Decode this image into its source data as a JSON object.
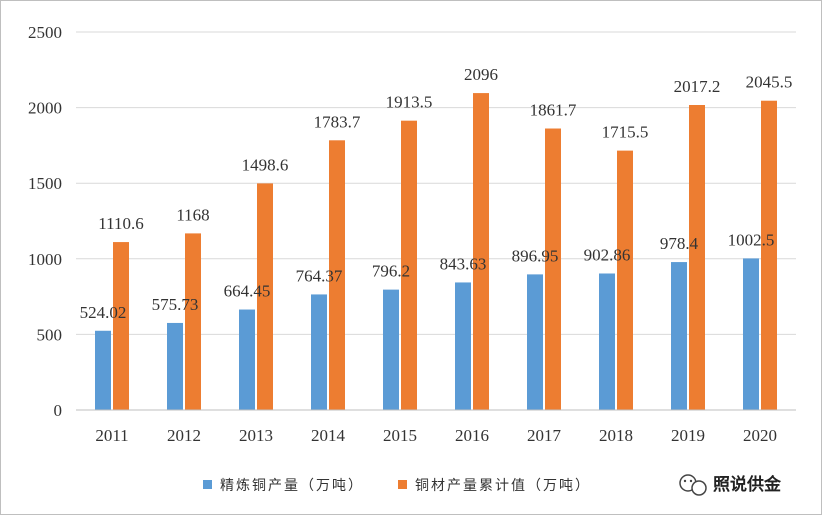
{
  "chart_data": {
    "type": "bar",
    "categories": [
      "2011",
      "2012",
      "2013",
      "2014",
      "2015",
      "2016",
      "2017",
      "2018",
      "2019",
      "2020"
    ],
    "series": [
      {
        "name": "精炼铜产量（万吨）",
        "color": "#5b9bd5",
        "values": [
          524.02,
          575.73,
          664.45,
          764.37,
          796.2,
          843.63,
          896.95,
          902.86,
          978.4,
          1002.5
        ],
        "labels": [
          "524.02",
          "575.73",
          "664.45",
          "764.37",
          "796.2",
          "843.63",
          "896.95",
          "902.86",
          "978.4",
          "1002.5"
        ]
      },
      {
        "name": "铜材产量累计值（万吨）",
        "color": "#ed7d31",
        "values": [
          1110.6,
          1168,
          1498.6,
          1783.7,
          1913.5,
          2096,
          1861.7,
          1715.5,
          2017.2,
          2045.5
        ],
        "labels": [
          "1110.6",
          "1168",
          "1498.6",
          "1783.7",
          "1913.5",
          "2096",
          "1861.7",
          "1715.5",
          "2017.2",
          "2045.5"
        ]
      }
    ],
    "ylim": [
      0,
      2500
    ],
    "yticks": [
      "0",
      "500",
      "1000",
      "1500",
      "2000",
      "2500"
    ],
    "grid": true,
    "legend_position": "bottom"
  },
  "watermark": {
    "text": "照说供金",
    "icon": "wechat-icon"
  }
}
